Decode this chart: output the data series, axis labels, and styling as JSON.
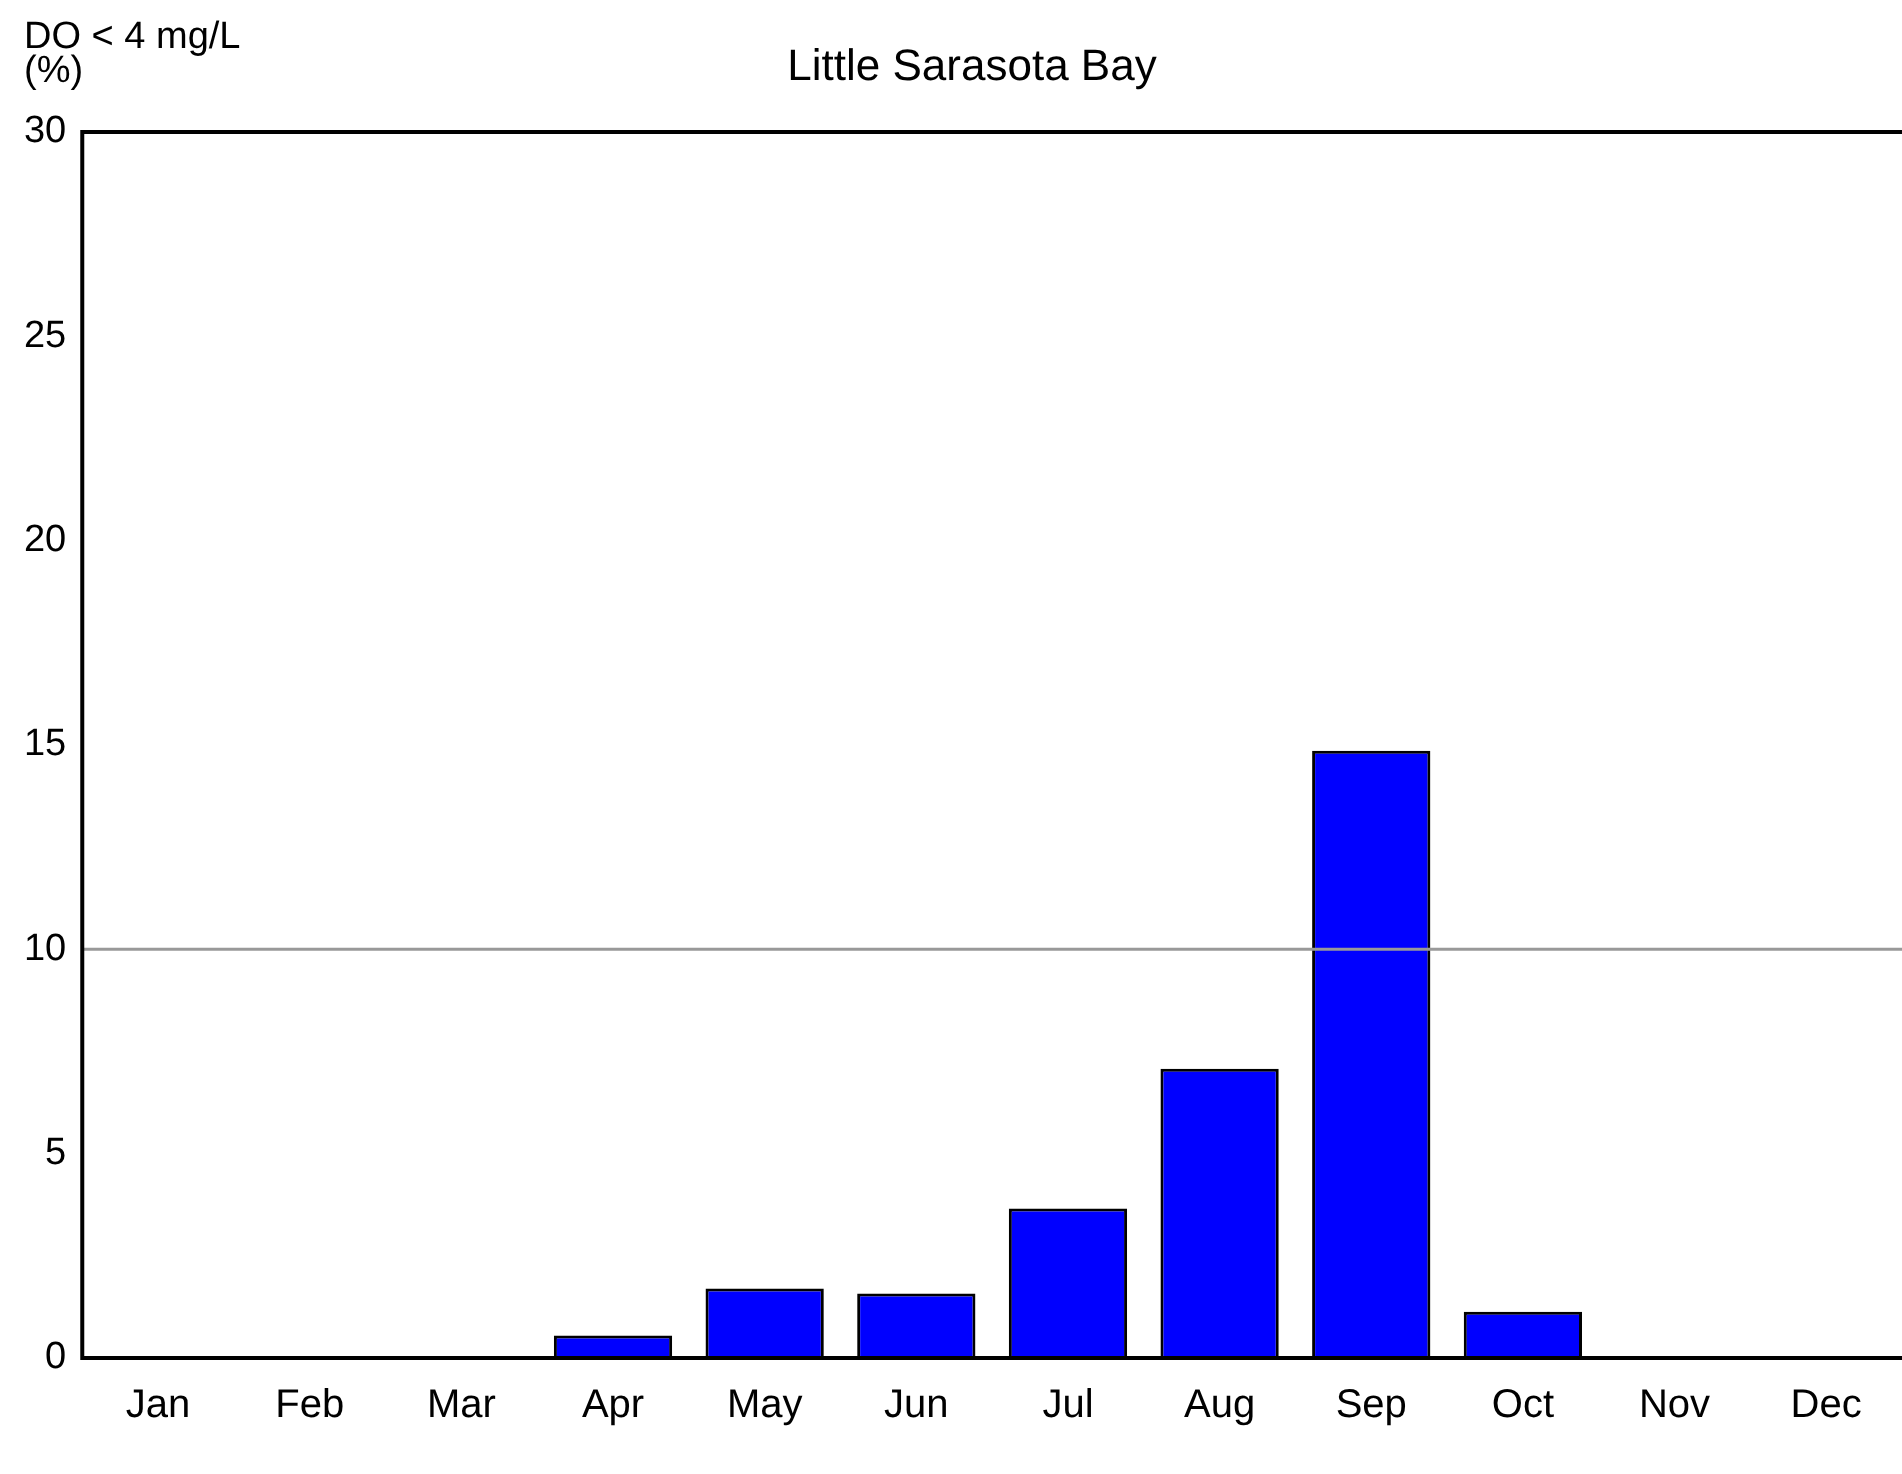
{
  "chart_data": {
    "type": "bar",
    "title": "Little Sarasota Bay",
    "ylabel": "DO < 4 mg/L\n(%)",
    "categories": [
      "Jan",
      "Feb",
      "Mar",
      "Apr",
      "May",
      "Jun",
      "Jul",
      "Aug",
      "Sep",
      "Oct",
      "Nov",
      "Dec"
    ],
    "values": [
      0,
      0,
      0,
      0.55,
      1.7,
      1.58,
      3.66,
      7.08,
      14.86,
      1.13,
      0,
      0
    ],
    "color": "#0000ff",
    "ylim": [
      0,
      30
    ],
    "yticks": [
      0,
      5,
      10,
      15,
      20,
      25,
      30
    ],
    "grid": false,
    "legend": false,
    "ref_lines": [
      {
        "axis": "y",
        "value": 10,
        "color": "#999999"
      }
    ]
  }
}
